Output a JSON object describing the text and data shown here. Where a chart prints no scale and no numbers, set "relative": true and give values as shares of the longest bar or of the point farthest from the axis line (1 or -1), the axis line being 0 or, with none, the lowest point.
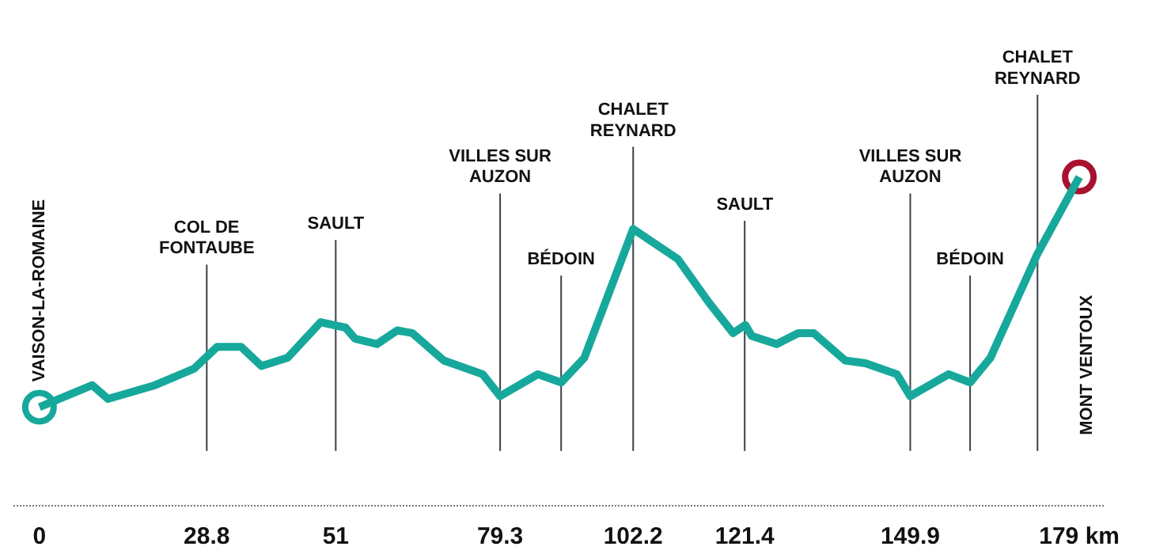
{
  "chart_data": {
    "type": "line",
    "relative": true,
    "marker": "none",
    "grid": false,
    "xlim": [
      0,
      179
    ],
    "x": [
      0,
      9.1,
      11.8,
      19.9,
      26.6,
      30.6,
      34.7,
      38.2,
      42.7,
      48.4,
      52.7,
      54.3,
      58.1,
      61.6,
      64.2,
      69.6,
      76.3,
      79.3,
      85.8,
      89.8,
      93.8,
      102.2,
      109.9,
      115.3,
      119.4,
      121.5,
      122.6,
      126.9,
      130.6,
      133.3,
      138.7,
      142.2,
      147.6,
      149.9,
      156.5,
      160.2,
      163.7,
      171.8,
      179
    ],
    "series": [
      {
        "color": "#17a89c",
        "values": [
          0.16,
          0.24,
          0.19,
          0.24,
          0.3,
          0.38,
          0.38,
          0.31,
          0.34,
          0.47,
          0.45,
          0.41,
          0.39,
          0.44,
          0.43,
          0.33,
          0.28,
          0.2,
          0.28,
          0.25,
          0.34,
          0.81,
          0.7,
          0.54,
          0.43,
          0.46,
          0.42,
          0.39,
          0.43,
          0.43,
          0.33,
          0.32,
          0.28,
          0.2,
          0.28,
          0.25,
          0.34,
          0.72,
          1
        ]
      }
    ],
    "xticks": [
      0,
      28.8,
      51,
      79.3,
      102.2,
      121.4,
      149.9,
      {
        "value": 179,
        "label": "179 km"
      }
    ],
    "tick_labels": "x",
    "ref_lines": [
      {
        "axis": "x",
        "value": 28.8,
        "label": "COL DE\nFONTAUBE",
        "color": "#3a3f4a"
      },
      {
        "axis": "x",
        "value": 51,
        "label": "SAULT",
        "color": "#3a3f4a"
      },
      {
        "axis": "x",
        "value": 79.3,
        "label": "VILLES SUR\nAUZON",
        "color": "#3a3f4a"
      },
      {
        "axis": "x",
        "value": 89.8,
        "label": "BÉDOIN",
        "color": "#3a3f4a"
      },
      {
        "axis": "x",
        "value": 102.2,
        "label": "CHALET\nREYNARD",
        "color": "#3a3f4a"
      },
      {
        "axis": "x",
        "value": 121.4,
        "label": "SAULT",
        "color": "#3a3f4a"
      },
      {
        "axis": "x",
        "value": 149.9,
        "label": "VILLES SUR\nAUZON",
        "color": "#3a3f4a"
      },
      {
        "axis": "x",
        "value": 160.2,
        "label": "BÉDOIN",
        "color": "#3a3f4a"
      },
      {
        "axis": "x",
        "value": 171.8,
        "label": "CHALET\nREYNARD",
        "color": "#3a3f4a"
      }
    ],
    "annotations": [
      "VAISON-LA-ROMAINE",
      "MONT VENTOUX"
    ]
  }
}
